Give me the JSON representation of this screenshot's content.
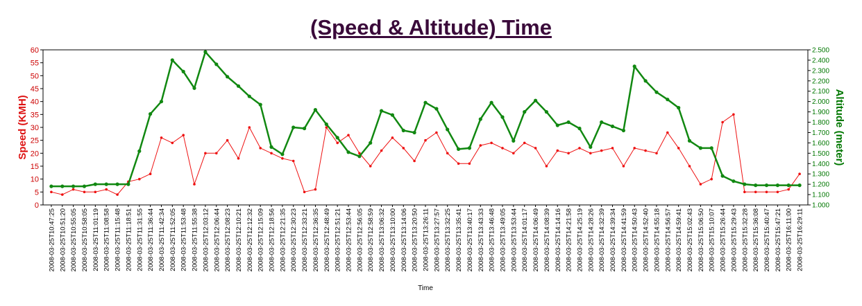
{
  "chart_data": {
    "type": "line",
    "title": "(Speed & Altitude) Time",
    "xlabel": "Time",
    "x": [
      "2008-03-25T10:47:25",
      "2008-03-25T10:51:20",
      "2008-03-25T10:55:05",
      "2008-03-25T10:58:05",
      "2008-03-25T11:01:19",
      "2008-03-25T11:08:58",
      "2008-03-25T11:15:48",
      "2008-03-25T11:18:51",
      "2008-03-25T11:31:55",
      "2008-03-25T11:36:44",
      "2008-03-25T11:42:34",
      "2008-03-25T11:52:05",
      "2008-03-25T11:53:48",
      "2008-03-25T11:55:38",
      "2008-03-25T12:03:12",
      "2008-03-25T12:06:44",
      "2008-03-25T12:08:23",
      "2008-03-25T12:10:21",
      "2008-03-25T12:12:32",
      "2008-03-25T12:15:09",
      "2008-03-25T12:18:56",
      "2008-03-25T12:21:35",
      "2008-03-25T12:30:23",
      "2008-03-25T12:33:21",
      "2008-03-25T12:36:35",
      "2008-03-25T12:48:49",
      "2008-03-25T12:51:21",
      "2008-03-25T12:53:44",
      "2008-03-25T12:56:05",
      "2008-03-25T12:58:59",
      "2008-03-25T13:06:32",
      "2008-03-25T13:10:00",
      "2008-03-25T13:14:06",
      "2008-03-25T13:20:50",
      "2008-03-25T13:26:11",
      "2008-03-25T13:27:57",
      "2008-03-25T13:32:25",
      "2008-03-25T13:35:41",
      "2008-03-25T13:40:17",
      "2008-03-25T13:43:33",
      "2008-03-25T13:46:48",
      "2008-03-25T13:49:05",
      "2008-03-25T13:53:44",
      "2008-03-25T14:01:17",
      "2008-03-25T14:06:49",
      "2008-03-25T14:08:39",
      "2008-03-25T14:14:16",
      "2008-03-25T14:21:58",
      "2008-03-25T14:25:19",
      "2008-03-25T14:28:26",
      "2008-03-25T14:32:39",
      "2008-03-25T14:39:34",
      "2008-03-25T14:41:59",
      "2008-03-25T14:50:43",
      "2008-03-25T14:52:40",
      "2008-03-25T14:55:18",
      "2008-03-25T14:56:57",
      "2008-03-25T14:59:41",
      "2008-03-25T15:02:43",
      "2008-03-25T15:06:50",
      "2008-03-25T15:10:07",
      "2008-03-25T15:26:44",
      "2008-03-25T15:29:43",
      "2008-03-25T15:32:28",
      "2008-03-25T15:36:08",
      "2008-03-25T15:40:47",
      "2008-03-25T15:47:21",
      "2008-03-25T16:11:00",
      "2008-03-25T16:29:11"
    ],
    "y_left": {
      "label": "Speed (KMH)",
      "ylim": [
        0,
        60
      ],
      "ticks": [
        "0",
        "5",
        "10",
        "15",
        "20",
        "25",
        "30",
        "35",
        "40",
        "45",
        "50",
        "55",
        "60"
      ],
      "color": "#ee1111"
    },
    "y_right": {
      "label": "Altitude (meter)",
      "ylim": [
        1000,
        2500
      ],
      "ticks": [
        "1.000",
        "1.100",
        "1.200",
        "1.300",
        "1.400",
        "1.500",
        "1.600",
        "1.700",
        "1.800",
        "1.900",
        "2.000",
        "2.100",
        "2.200",
        "2.300",
        "2.400",
        "2.500"
      ],
      "color": "#118811"
    },
    "series": [
      {
        "axis": "left",
        "color": "#ee1111",
        "values": [
          5,
          4,
          6,
          5,
          5,
          6,
          4,
          9,
          10,
          12,
          26,
          24,
          27,
          8,
          20,
          20,
          25,
          18,
          30,
          22,
          20,
          18,
          17,
          5,
          6,
          30,
          24,
          27,
          20,
          15,
          21,
          26,
          22,
          17,
          25,
          28,
          20,
          16,
          16,
          23,
          24,
          22,
          20,
          24,
          22,
          15,
          21,
          20,
          22,
          20,
          21,
          22,
          15,
          22,
          21,
          20,
          28,
          22,
          15,
          8,
          10,
          32,
          35,
          5,
          5,
          5,
          5,
          6,
          12
        ]
      },
      {
        "axis": "right",
        "color": "#118811",
        "values": [
          1180,
          1180,
          1180,
          1180,
          1200,
          1200,
          1200,
          1200,
          1520,
          1880,
          2000,
          2400,
          2290,
          2130,
          2480,
          2360,
          2240,
          2150,
          2050,
          1970,
          1560,
          1490,
          1750,
          1740,
          1920,
          1780,
          1650,
          1510,
          1470,
          1600,
          1910,
          1870,
          1720,
          1700,
          1990,
          1930,
          1730,
          1540,
          1550,
          1830,
          1990,
          1850,
          1620,
          1900,
          2010,
          1900,
          1770,
          1800,
          1740,
          1560,
          1800,
          1760,
          1720,
          2340,
          2200,
          2090,
          2020,
          1940,
          1620,
          1550,
          1550,
          1280,
          1230,
          1200,
          1190,
          1190,
          1190,
          1190,
          1190
        ]
      }
    ]
  }
}
